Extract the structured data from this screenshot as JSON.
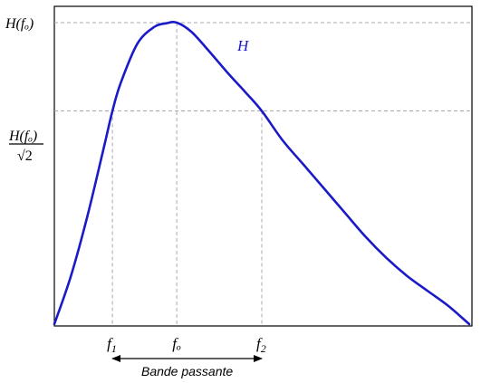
{
  "chart_data": {
    "type": "line",
    "title": "",
    "xlabel": "",
    "ylabel": "",
    "grid": false,
    "x_domain": [
      0,
      10
    ],
    "y_domain": [
      0,
      1
    ],
    "peak": {
      "x": 2.95,
      "y": 1.0
    },
    "cutoff_level": 0.7071,
    "cutoffs": [
      1.4,
      5.0
    ],
    "series": [
      {
        "name": "H",
        "color": "#1a1ac8",
        "x": [
          0.0,
          0.4,
          0.8,
          1.2,
          1.4,
          1.6,
          2.0,
          2.4,
          2.7,
          2.95,
          3.3,
          3.7,
          4.2,
          4.6,
          5.0,
          5.5,
          6.0,
          6.5,
          7.0,
          7.5,
          8.0,
          8.5,
          9.0,
          9.5,
          10.0
        ],
        "y": [
          0.0,
          0.16,
          0.36,
          0.59,
          0.7071,
          0.8,
          0.93,
          0.985,
          0.998,
          1.0,
          0.97,
          0.91,
          0.83,
          0.77,
          0.7071,
          0.61,
          0.53,
          0.45,
          0.37,
          0.29,
          0.22,
          0.16,
          0.11,
          0.06,
          0.0
        ]
      }
    ],
    "curve_label": "H",
    "y_tick_labels": {
      "peak": "H(fₒ)",
      "cutoff_numerator": "H(fₒ)",
      "cutoff_denominator": "√2"
    },
    "x_tick_labels": {
      "f1": "f",
      "f1_sub": "1",
      "f0": "fₒ",
      "f2": "f",
      "f2_sub": "2"
    },
    "annotation": "Bande passante"
  }
}
